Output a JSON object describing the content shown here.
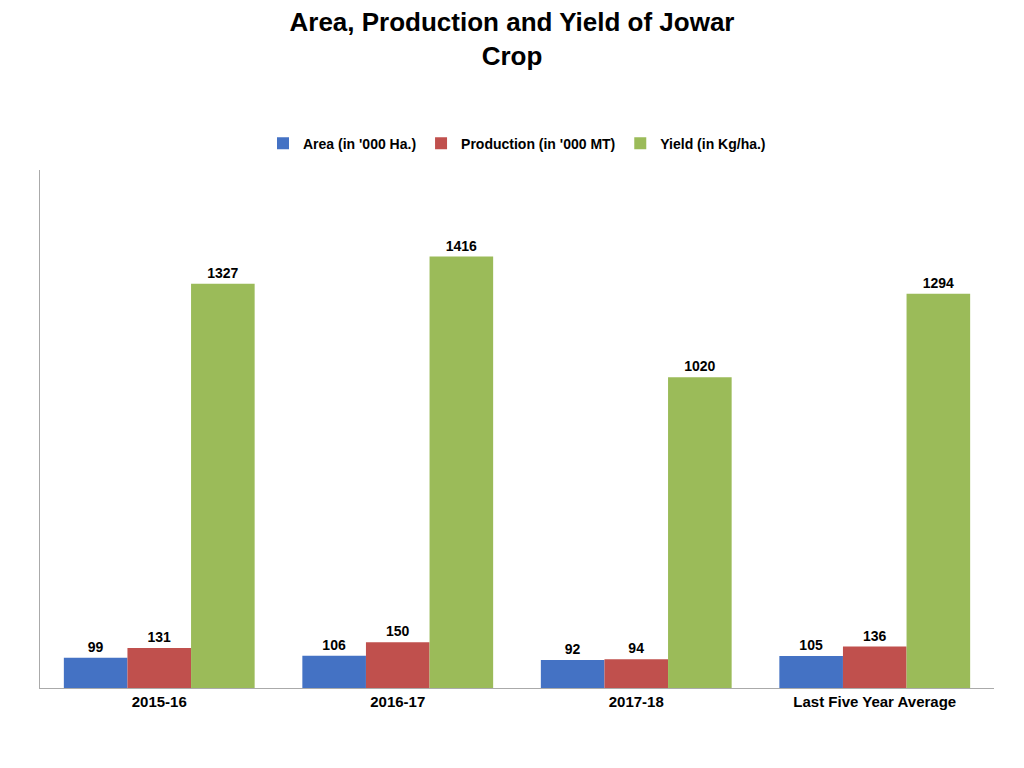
{
  "chart_data": {
    "type": "bar",
    "title": "Area, Production and Yield of Jowar",
    "subtitle": "Crop",
    "categories": [
      "2015-16",
      "2016-17",
      "2017-18",
      "Last Five Year Average"
    ],
    "series": [
      {
        "name": "Area (in '000 Ha.)",
        "color": "#4472C4",
        "values": [
          99,
          106,
          92,
          105
        ]
      },
      {
        "name": "Production (in '000 MT)",
        "color": "#C0504D",
        "values": [
          131,
          150,
          94,
          136
        ]
      },
      {
        "name": "Yield (in Kg/ha.)",
        "color": "#9BBB59",
        "values": [
          1327,
          1416,
          1020,
          1294
        ]
      }
    ],
    "ylim": [
      0,
      1700
    ],
    "tick_labels": "x",
    "data_labels": true,
    "grid": false,
    "legend": "top"
  }
}
